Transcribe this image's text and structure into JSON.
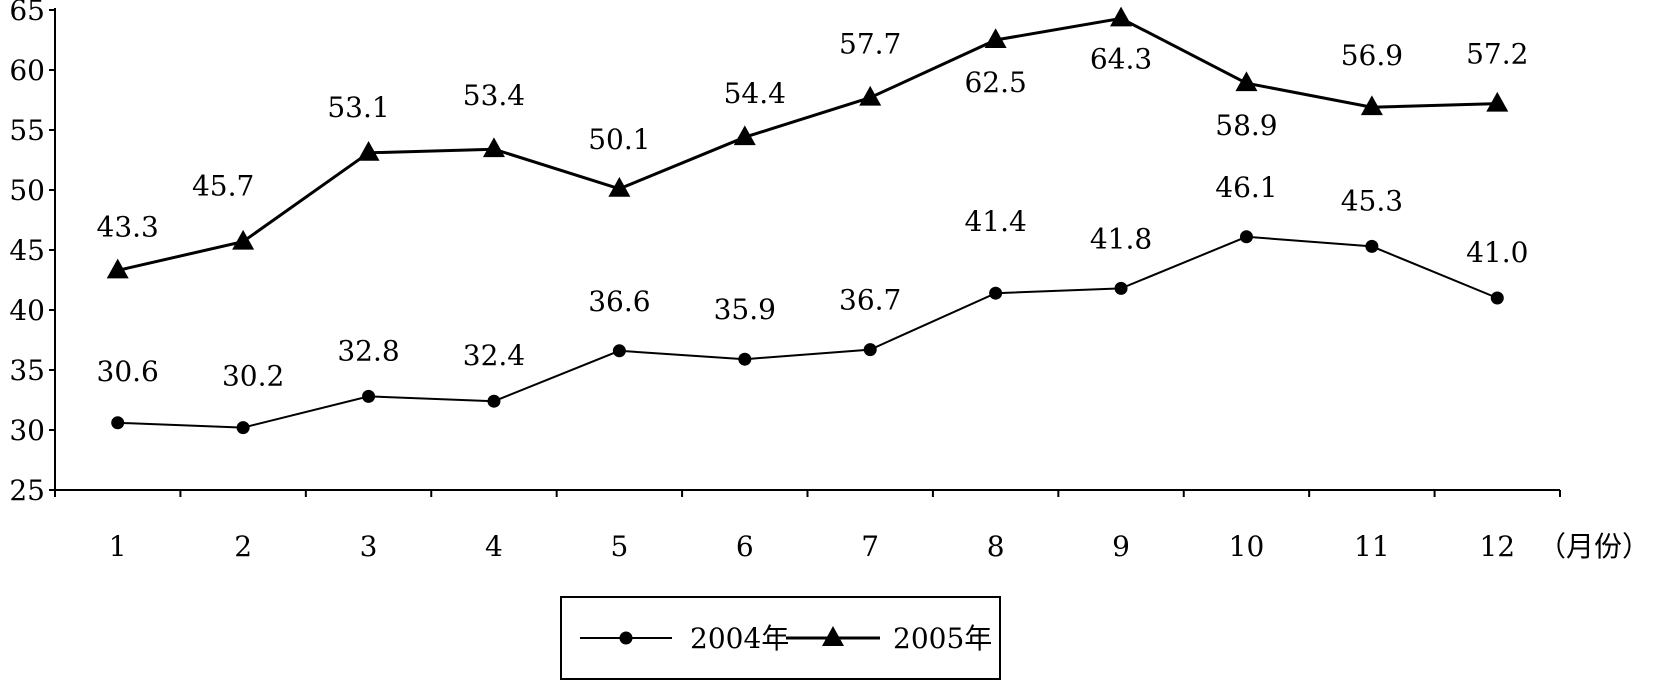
{
  "chart_data": {
    "type": "line",
    "categories": [
      "1",
      "2",
      "3",
      "4",
      "5",
      "6",
      "7",
      "8",
      "9",
      "10",
      "11",
      "12"
    ],
    "x_unit_label": "（月份）",
    "ylim": [
      25,
      65
    ],
    "y_ticks": [
      "25",
      "30",
      "35",
      "40",
      "45",
      "50",
      "55",
      "60",
      "65"
    ],
    "grid": false,
    "legend_position": "bottom-center",
    "series": [
      {
        "name": "2004年",
        "marker": "circle",
        "values": [
          30.6,
          30.2,
          32.8,
          32.4,
          36.6,
          35.9,
          36.7,
          41.4,
          41.8,
          46.1,
          45.3,
          41.0
        ],
        "labels": [
          "30.6",
          "30.2",
          "32.8",
          "32.4",
          "36.6",
          "35.9",
          "36.7",
          "41.4",
          "41.8",
          "46.1",
          "45.3",
          "41.0"
        ]
      },
      {
        "name": "2005年",
        "marker": "triangle",
        "values": [
          43.3,
          45.7,
          53.1,
          53.4,
          50.1,
          54.4,
          57.7,
          62.5,
          64.3,
          58.9,
          56.9,
          57.2
        ],
        "labels": [
          "43.3",
          "45.7",
          "53.1",
          "53.4",
          "50.1",
          "54.4",
          "57.7",
          "62.5",
          "64.3",
          "58.9",
          "56.9",
          "57.2"
        ]
      }
    ],
    "colors": {
      "line": "#000000",
      "background": "#ffffff"
    }
  }
}
